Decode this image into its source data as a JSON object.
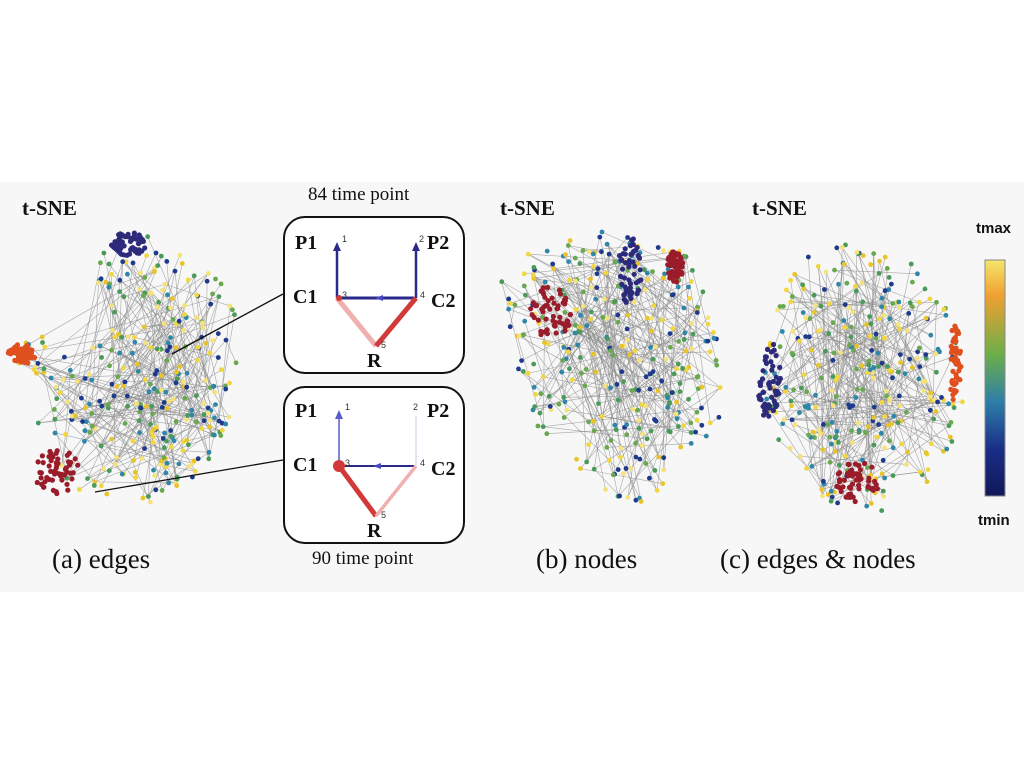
{
  "panels": [
    {
      "id": "a",
      "title": "t-SNE",
      "caption": "(a) edges"
    },
    {
      "id": "b",
      "title": "t-SNE",
      "caption": "(b) nodes"
    },
    {
      "id": "c",
      "title": "t-SNE",
      "caption": "(c) edges & nodes"
    }
  ],
  "insets": [
    {
      "label": "84 time point",
      "nodes": {
        "P1": "P1",
        "P2": "P2",
        "C1": "C1",
        "C2": "C2",
        "R": "R"
      },
      "indices": {
        "P1": "1",
        "P2": "2",
        "C1": "3",
        "C2": "4",
        "R": "5"
      }
    },
    {
      "label": "90 time point",
      "nodes": {
        "P1": "P1",
        "P2": "P2",
        "C1": "C1",
        "C2": "C2",
        "R": "R"
      },
      "indices": {
        "P1": "1",
        "P2": "2",
        "C1": "3",
        "C2": "4",
        "R": "5"
      }
    }
  ],
  "colorbar": {
    "max_label": "tmax",
    "min_label": "tmin"
  },
  "colors": {
    "edge_gray": "#8c8c8c",
    "blue": "#2a2a8c",
    "red": "#d23a3a",
    "pink": "#f0b0b0",
    "cluster_dark_red": "#9a1c2a",
    "cluster_orange": "#e0501e",
    "cluster_purple": "#2c2a7a"
  }
}
